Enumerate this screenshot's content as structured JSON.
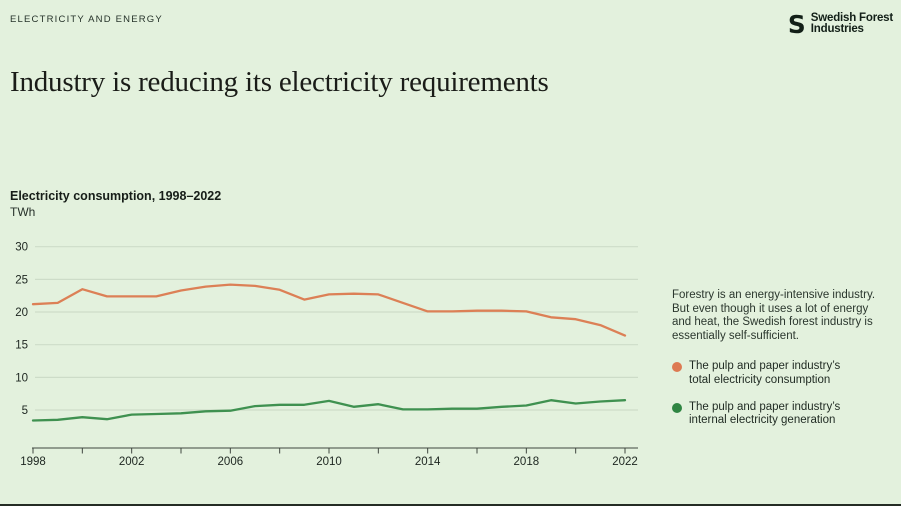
{
  "page": {
    "kicker": "ELECTRICITY AND ENERGY",
    "title": "Industry is reducing its electricity requirements"
  },
  "logo": {
    "icon": "s-loop-logo-icon",
    "line1": "Swedish Forest",
    "line2": "Industries"
  },
  "chart_header": {
    "heading": "Electricity consumption, 1998–2022",
    "unit": "TWh"
  },
  "aside": {
    "paragraph": "Forestry is an energy-intensive industry. But even though it uses a lot of energy and heat, the Swedish forest industry is essentially self-sufficient."
  },
  "legend": [
    {
      "label": "The pulp and paper industry’s total electricity consumption",
      "color": "#dd7a52"
    },
    {
      "label": "The pulp and paper industry’s internal electricity generation",
      "color": "#2f8542"
    }
  ],
  "colors": {
    "background": "#e3f1dd",
    "line_total": "#dc8056",
    "line_internal": "#3f9150",
    "gridline": "#cddcc8",
    "axis": "#3f463f",
    "text_dark": "#1d2620"
  },
  "chart_data": {
    "type": "line",
    "title": "Electricity consumption, 1998–2022",
    "xlabel": "",
    "ylabel": "TWh",
    "x": [
      1998,
      1999,
      2000,
      2001,
      2002,
      2003,
      2004,
      2005,
      2006,
      2007,
      2008,
      2009,
      2010,
      2011,
      2012,
      2013,
      2014,
      2015,
      2016,
      2017,
      2018,
      2019,
      2020,
      2021,
      2022
    ],
    "series": [
      {
        "name": "The pulp and paper industry’s total electricity consumption",
        "color": "#dc8056",
        "values": [
          21.2,
          21.4,
          23.5,
          22.4,
          22.4,
          22.4,
          23.3,
          23.9,
          24.2,
          24.0,
          23.4,
          21.9,
          22.7,
          22.8,
          22.7,
          21.4,
          20.1,
          20.1,
          20.2,
          20.2,
          20.1,
          19.2,
          18.9,
          18.0,
          16.4
        ]
      },
      {
        "name": "The pulp and paper industry’s internal electricity generation",
        "color": "#3f9150",
        "values": [
          3.4,
          3.5,
          3.9,
          3.6,
          4.3,
          4.4,
          4.5,
          4.8,
          4.9,
          5.6,
          5.8,
          5.8,
          6.4,
          5.5,
          5.9,
          5.1,
          5.1,
          5.2,
          5.2,
          5.5,
          5.7,
          6.5,
          6.0,
          6.3,
          6.5
        ]
      }
    ],
    "ylim": [
      0,
      30
    ],
    "yticks": [
      5,
      10,
      15,
      20,
      25,
      30
    ],
    "xticks_labeled": [
      1998,
      2002,
      2006,
      2010,
      2014,
      2018,
      2022
    ],
    "xtick_minor_step": 2,
    "grid": "horizontal",
    "legend_position": "right"
  }
}
